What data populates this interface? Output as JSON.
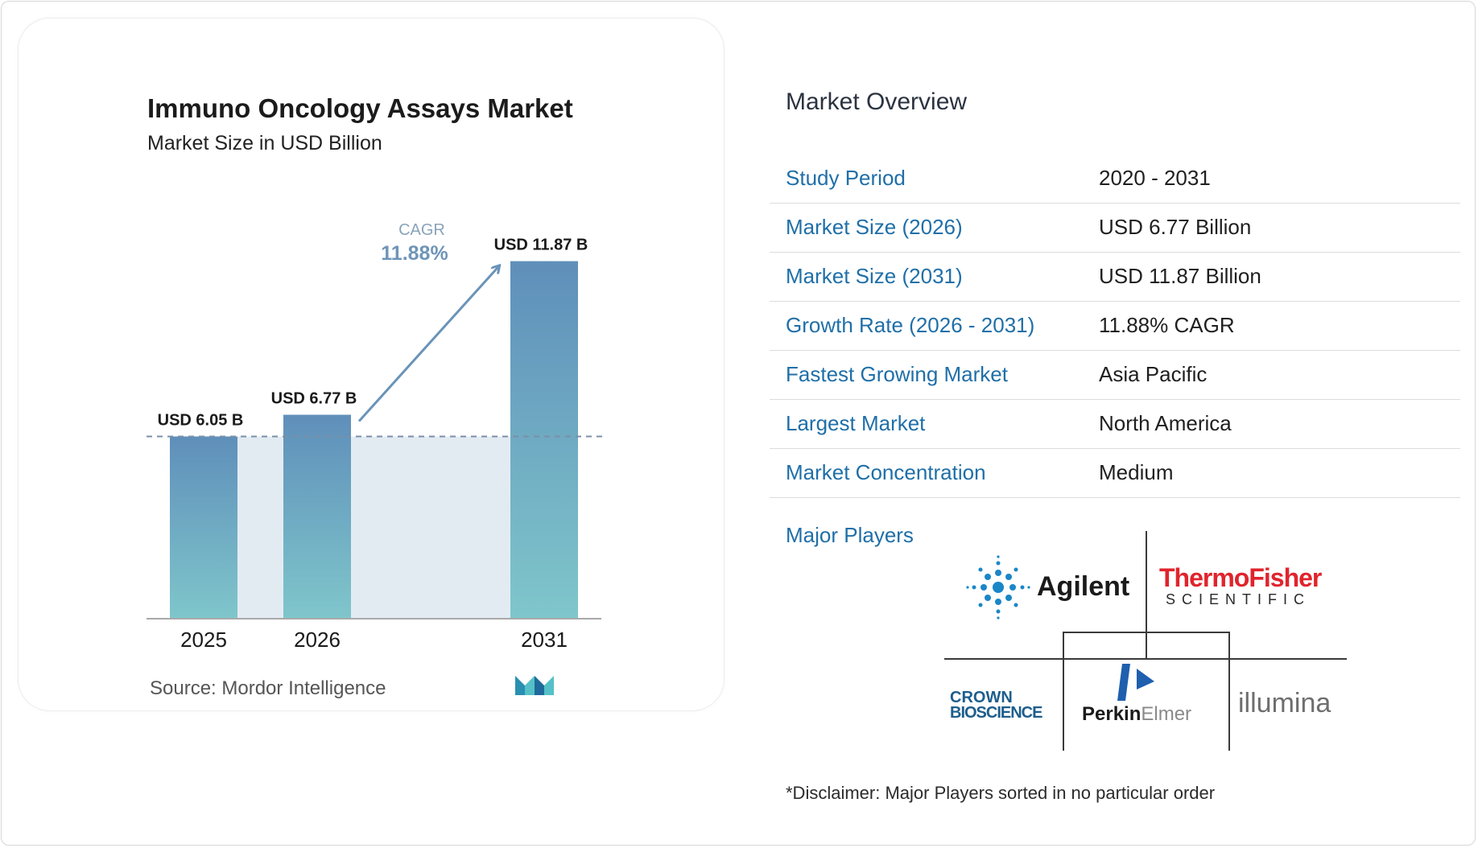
{
  "chart_data": {
    "type": "bar",
    "title": "Immuno Oncology Assays Market",
    "subtitle": "Market Size in USD Billion",
    "categories": [
      "2025",
      "2026",
      "2031"
    ],
    "values": [
      6.05,
      6.77,
      11.87
    ],
    "data_labels": [
      "USD 6.05 B",
      "USD 6.77 B",
      "USD 11.87 B"
    ],
    "cagr_label": "CAGR",
    "cagr_value": "11.88%",
    "ylim": [
      0,
      12.5
    ],
    "grid": false,
    "colors": {
      "bar_top": "#5f8fba",
      "bar_bottom": "#7fc6cb",
      "band": "#e3ebf2",
      "arrow": "#6a93b8"
    }
  },
  "source": "Source:  Mordor Intelligence",
  "overview": {
    "heading": "Market Overview",
    "rows": [
      {
        "label": "Study Period",
        "value": "2020 - 2031"
      },
      {
        "label": "Market Size (2026)",
        "value": "USD 6.77 Billion"
      },
      {
        "label": "Market Size (2031)",
        "value": "USD 11.87 Billion"
      },
      {
        "label": "Growth Rate (2026 - 2031)",
        "value": "11.88% CAGR"
      },
      {
        "label": "Fastest Growing Market",
        "value": "Asia Pacific"
      },
      {
        "label": "Largest Market",
        "value": "North America"
      },
      {
        "label": "Market Concentration",
        "value": "Medium"
      }
    ],
    "players_label": "Major Players",
    "players": {
      "agilent": "Agilent",
      "thermo_top": "ThermoFisher",
      "thermo_bottom": "SCIENTIFIC",
      "crown_top": "CROWN",
      "crown_bottom": "BIOSCIENCE",
      "perkin_a": "Perkin",
      "perkin_b": "Elmer",
      "illumina": "illumina"
    },
    "disclaimer": "*Disclaimer: Major Players sorted in no particular order"
  },
  "colors": {
    "label_blue": "#1f6fa8",
    "thermo_red": "#e0242c"
  }
}
